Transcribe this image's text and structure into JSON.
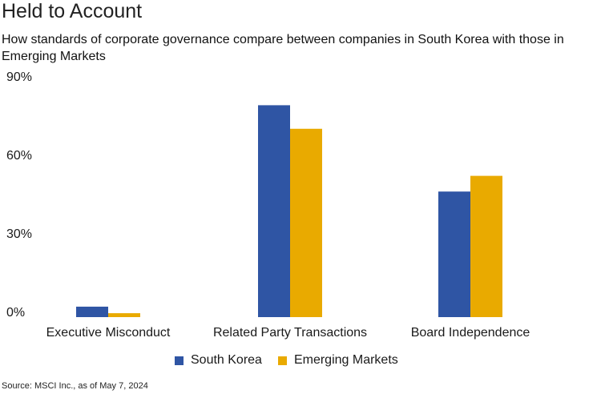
{
  "header": {
    "title": "Held to Account",
    "subtitle": "How standards of corporate governance compare between companies in South Korea with those in Emerging Markets"
  },
  "footer": {
    "source": "Source: MSCI Inc., as of May 7, 2024"
  },
  "colors": {
    "south_korea": "#2f55a4",
    "emerging_markets": "#e9aa00"
  },
  "chart_data": {
    "type": "bar",
    "title": "Held to Account",
    "subtitle": "How standards of corporate governance compare between companies in South Korea with those in Emerging Markets",
    "categories": [
      "Executive Misconduct",
      "Related Party Transactions",
      "Board Independence"
    ],
    "series": [
      {
        "name": "South Korea",
        "values": [
          4,
          81,
          48
        ],
        "color": "#2f55a4"
      },
      {
        "name": "Emerging Markets",
        "values": [
          1.5,
          72,
          54
        ],
        "color": "#e9aa00"
      }
    ],
    "yticks": [
      "0%",
      "30%",
      "60%",
      "90%"
    ],
    "ytick_values": [
      0,
      30,
      60,
      90
    ],
    "ylim": [
      0,
      90
    ],
    "xlabel": "",
    "ylabel": "",
    "grid": false,
    "legend_position": "bottom"
  }
}
